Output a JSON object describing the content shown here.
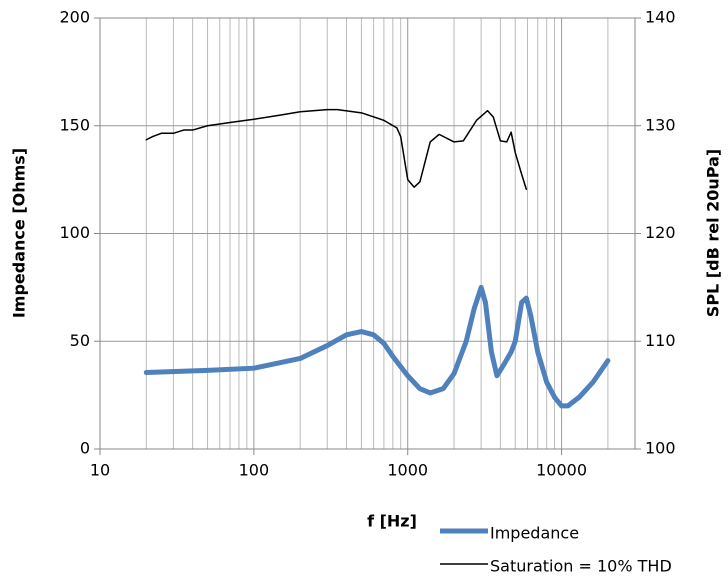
{
  "chart_data": {
    "type": "line",
    "x_label": "f [Hz]",
    "y_label": "Impedance [Ohms]",
    "y2_label": "SPL [dB rel 20uPa]",
    "log_x": true,
    "grid": true,
    "minor_grid": true,
    "legend": "bottom-right",
    "xlim": [
      10,
      30000
    ],
    "xticks": [
      10,
      100,
      1000,
      10000
    ],
    "ylim": [
      0,
      200
    ],
    "yticks": [
      0,
      50,
      100,
      150,
      200
    ],
    "y2lim": [
      100,
      140
    ],
    "y2ticks": [
      100,
      110,
      120,
      130,
      140
    ],
    "series": [
      {
        "name": "Impedance",
        "color": "#4f81bd",
        "axis": "y",
        "x": [
          20,
          50,
          100,
          200,
          300,
          400,
          500,
          600,
          700,
          800,
          1000,
          1200,
          1400,
          1700,
          2000,
          2400,
          2700,
          3000,
          3200,
          3500,
          3800,
          4200,
          4700,
          5000,
          5500,
          5900,
          6300,
          7000,
          8000,
          9000,
          10000,
          11000,
          13000,
          16000,
          20000
        ],
        "values": [
          35.5,
          36.5,
          37.5,
          42,
          48,
          53,
          54.5,
          53,
          49,
          43,
          34,
          28,
          26,
          28,
          35,
          50,
          65,
          75,
          68,
          45,
          34,
          39,
          45,
          50,
          68,
          70,
          62,
          45,
          31,
          24,
          20,
          20,
          24,
          31,
          41
        ]
      },
      {
        "name": "Saturation = 10% THD",
        "color": "#000000",
        "axis": "y2",
        "x": [
          20,
          22,
          25,
          30,
          35,
          40,
          50,
          70,
          100,
          150,
          200,
          300,
          350,
          500,
          700,
          850,
          900,
          1000,
          1100,
          1200,
          1400,
          1600,
          2000,
          2300,
          2800,
          3300,
          3600,
          4000,
          4400,
          4700,
          5000,
          5500,
          5900
        ],
        "values": [
          128.7,
          129.0,
          129.3,
          129.3,
          129.6,
          129.6,
          130.0,
          130.3,
          130.6,
          131.0,
          131.3,
          131.5,
          131.5,
          131.2,
          130.5,
          129.8,
          129.0,
          125.0,
          124.3,
          124.8,
          128.5,
          129.2,
          128.5,
          128.6,
          130.5,
          131.4,
          130.8,
          128.6,
          128.5,
          129.4,
          127.5,
          125.5,
          124.1
        ]
      }
    ]
  }
}
